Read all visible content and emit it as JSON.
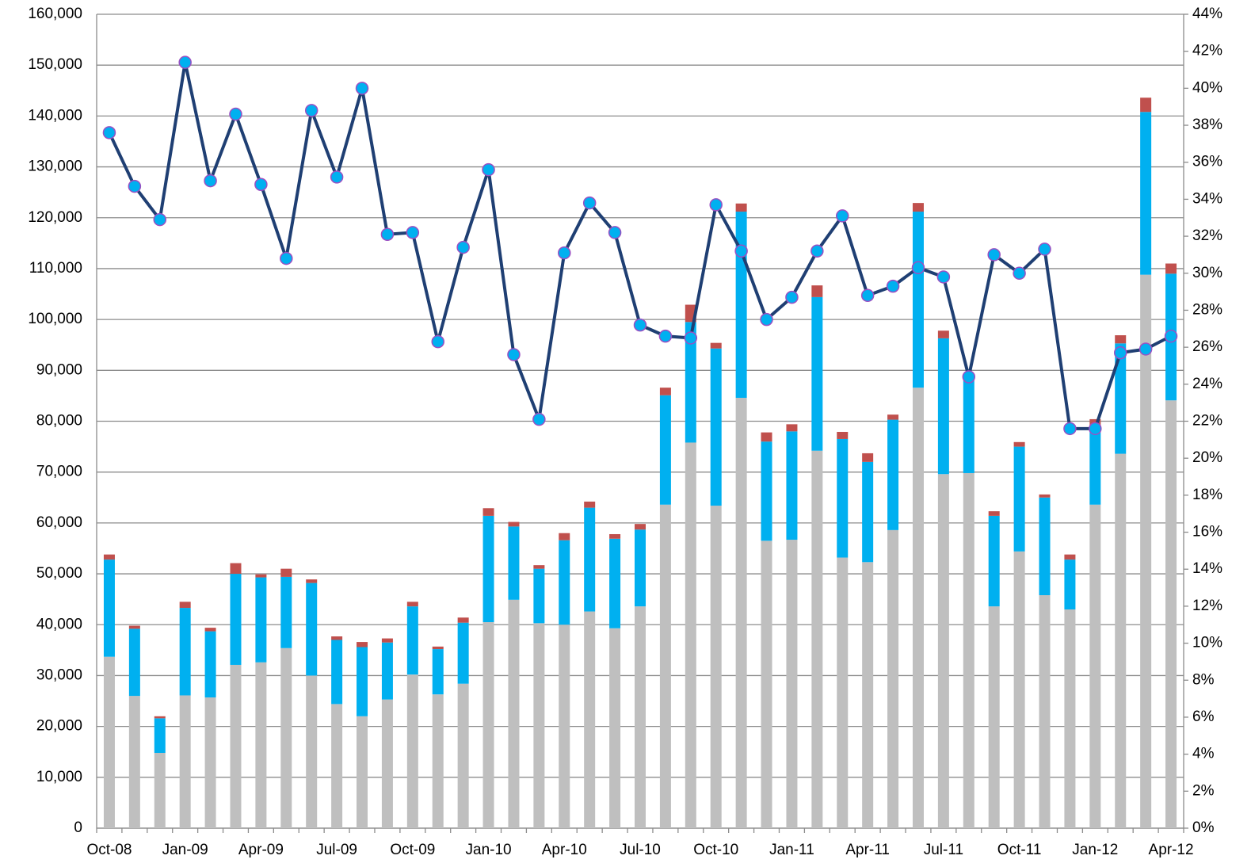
{
  "chart_data": {
    "type": "bar",
    "categories": [
      "Oct-08",
      null,
      null,
      "Jan-09",
      null,
      null,
      "Apr-09",
      null,
      null,
      "Jul-09",
      null,
      null,
      "Oct-09",
      null,
      null,
      "Jan-10",
      null,
      null,
      "Apr-10",
      null,
      null,
      "Jul-10",
      null,
      null,
      "Oct-10",
      null,
      null,
      "Jan-11",
      null,
      null,
      "Apr-11",
      null,
      null,
      "Jul-11",
      null,
      null,
      "Oct-11",
      null,
      null,
      "Jan-12",
      null,
      null,
      "Apr-12"
    ],
    "stacked": true,
    "series": [
      {
        "type": "bar",
        "color": "#bfbfbf",
        "values": [
          33700,
          26000,
          14800,
          26100,
          25700,
          32100,
          32600,
          35400,
          30000,
          24400,
          22000,
          25300,
          30200,
          26300,
          28400,
          40500,
          44900,
          40300,
          40000,
          42600,
          39300,
          43600,
          63600,
          75800,
          63400,
          84600,
          56500,
          56700,
          74200,
          53200,
          52300,
          58600,
          86600,
          69600,
          69800,
          43600,
          54400,
          45800,
          43000,
          63600,
          73600,
          108800,
          84100
        ]
      },
      {
        "type": "bar",
        "color": "#00b0f0",
        "values": [
          19100,
          13200,
          6800,
          17200,
          13000,
          17900,
          16700,
          14000,
          18200,
          12600,
          13600,
          11200,
          13400,
          8900,
          12000,
          20900,
          14400,
          10700,
          16600,
          20400,
          17600,
          15100,
          21500,
          23700,
          30900,
          36600,
          19500,
          21300,
          30200,
          23300,
          19700,
          21700,
          34600,
          26700,
          18200,
          17800,
          20600,
          19200,
          9800,
          15400,
          21700,
          32000,
          24900
        ]
      },
      {
        "type": "bar",
        "color": "#c0504d",
        "values": [
          1000,
          600,
          400,
          1200,
          700,
          2100,
          600,
          1600,
          700,
          700,
          1000,
          800,
          900,
          500,
          1000,
          1500,
          900,
          700,
          1400,
          1200,
          900,
          1100,
          1500,
          3400,
          1100,
          1600,
          1800,
          1400,
          2300,
          1400,
          1700,
          1000,
          1700,
          1500,
          1000,
          900,
          900,
          600,
          1000,
          1400,
          1600,
          2800,
          2000
        ]
      },
      {
        "type": "line",
        "axis": "y2",
        "color": "#1f3f73",
        "marker_color": "#00b0f0",
        "marker_edge_color": "#9b4fc2",
        "values": [
          37.6,
          34.7,
          32.9,
          41.4,
          35.0,
          38.6,
          34.8,
          30.8,
          38.8,
          35.2,
          40.0,
          32.1,
          32.2,
          26.3,
          31.4,
          35.6,
          25.6,
          22.1,
          31.1,
          33.8,
          32.2,
          27.2,
          26.6,
          26.5,
          33.7,
          31.2,
          27.5,
          28.7,
          31.2,
          33.1,
          28.8,
          29.3,
          30.3,
          29.8,
          24.4,
          31.0,
          30.0,
          31.3,
          21.6,
          21.6,
          25.7,
          25.9,
          26.6
        ]
      }
    ],
    "ylim": [
      0,
      160000
    ],
    "yticks": [
      0,
      {
        "value": 10000,
        "label": "10,000"
      },
      {
        "value": 20000,
        "label": "20,000"
      },
      {
        "value": 30000,
        "label": "30,000"
      },
      {
        "value": 40000,
        "label": "40,000"
      },
      {
        "value": 50000,
        "label": "50,000"
      },
      {
        "value": 60000,
        "label": "60,000"
      },
      {
        "value": 70000,
        "label": "70,000"
      },
      {
        "value": 80000,
        "label": "80,000"
      },
      {
        "value": 90000,
        "label": "90,000"
      },
      {
        "value": 100000,
        "label": "100,000"
      },
      {
        "value": 110000,
        "label": "110,000"
      },
      {
        "value": 120000,
        "label": "120,000"
      },
      {
        "value": 130000,
        "label": "130,000"
      },
      {
        "value": 140000,
        "label": "140,000"
      },
      {
        "value": 150000,
        "label": "150,000"
      },
      {
        "value": 160000,
        "label": "160,000"
      }
    ],
    "y2lim": [
      0,
      44
    ],
    "y2ticks": [
      {
        "value": 0,
        "label": "0%"
      },
      {
        "value": 2,
        "label": "2%"
      },
      {
        "value": 4,
        "label": "4%"
      },
      {
        "value": 6,
        "label": "6%"
      },
      {
        "value": 8,
        "label": "8%"
      },
      {
        "value": 10,
        "label": "10%"
      },
      {
        "value": 12,
        "label": "12%"
      },
      {
        "value": 14,
        "label": "14%"
      },
      {
        "value": 16,
        "label": "16%"
      },
      {
        "value": 18,
        "label": "18%"
      },
      {
        "value": 20,
        "label": "20%"
      },
      {
        "value": 22,
        "label": "22%"
      },
      {
        "value": 24,
        "label": "24%"
      },
      {
        "value": 26,
        "label": "26%"
      },
      {
        "value": 28,
        "label": "28%"
      },
      {
        "value": 30,
        "label": "30%"
      },
      {
        "value": 32,
        "label": "32%"
      },
      {
        "value": 34,
        "label": "34%"
      },
      {
        "value": 36,
        "label": "36%"
      },
      {
        "value": 38,
        "label": "38%"
      },
      {
        "value": 40,
        "label": "40%"
      },
      {
        "value": 42,
        "label": "42%"
      },
      {
        "value": 44,
        "label": "44%"
      }
    ],
    "grid": true
  }
}
